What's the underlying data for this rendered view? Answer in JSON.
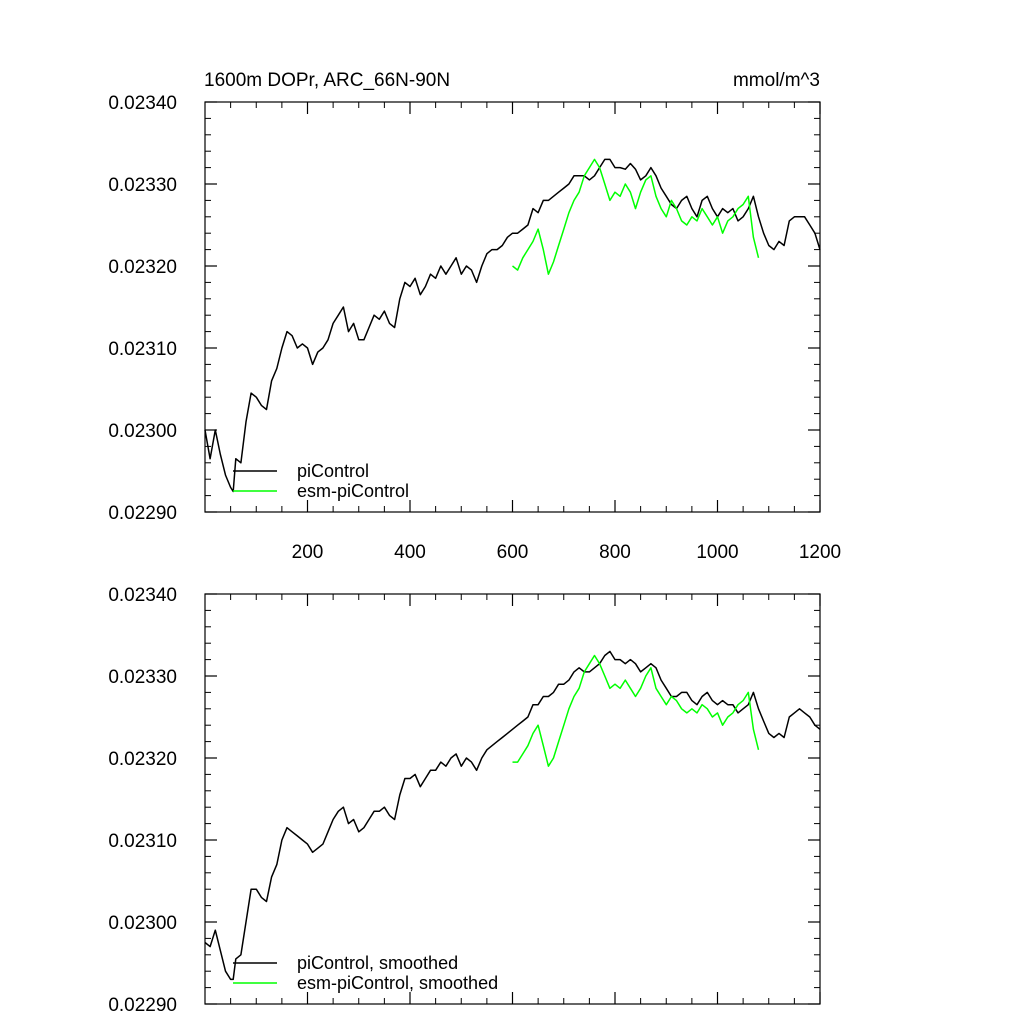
{
  "chart_data": [
    {
      "type": "line",
      "title": "1600m DOPr, ARC_66N-90N",
      "units": "mmol/m^3",
      "xlim": [
        0,
        1200
      ],
      "ylim": [
        0.0229,
        0.0234
      ],
      "xticks": [
        200,
        400,
        600,
        800,
        1000,
        1200
      ],
      "yticks": [
        0.0229,
        0.023,
        0.0231,
        0.0232,
        0.0233,
        0.0234
      ],
      "xtick_labels": [
        "200",
        "400",
        "600",
        "800",
        "1000",
        "1200"
      ],
      "ytick_labels": [
        "0.02290",
        "0.02300",
        "0.02310",
        "0.02320",
        "0.02330",
        "0.02340"
      ],
      "legend": "bottom-left",
      "series": [
        {
          "name": "piControl",
          "color": "#000000",
          "x": [
            0,
            10,
            20,
            30,
            40,
            50,
            55,
            60,
            70,
            80,
            90,
            100,
            110,
            120,
            130,
            140,
            150,
            160,
            170,
            180,
            190,
            200,
            210,
            220,
            230,
            240,
            250,
            260,
            270,
            280,
            290,
            300,
            310,
            320,
            330,
            340,
            350,
            360,
            370,
            380,
            390,
            400,
            410,
            420,
            430,
            440,
            450,
            460,
            470,
            480,
            490,
            500,
            510,
            520,
            530,
            540,
            550,
            560,
            570,
            580,
            590,
            600,
            610,
            620,
            630,
            640,
            650,
            660,
            670,
            680,
            690,
            700,
            710,
            720,
            730,
            740,
            750,
            760,
            770,
            780,
            790,
            800,
            810,
            820,
            830,
            840,
            850,
            860,
            870,
            880,
            890,
            900,
            910,
            920,
            930,
            940,
            950,
            960,
            970,
            980,
            990,
            1000,
            1010,
            1020,
            1030,
            1040,
            1050,
            1060,
            1070,
            1080,
            1090,
            1100,
            1110,
            1120,
            1130,
            1140,
            1150,
            1160,
            1170,
            1180,
            1190,
            1200
          ],
          "y": [
            0.023,
            0.022965,
            0.023,
            0.02297,
            0.022945,
            0.02293,
            0.022925,
            0.022965,
            0.02296,
            0.02301,
            0.023045,
            0.02304,
            0.02303,
            0.023025,
            0.02306,
            0.023075,
            0.0231,
            0.02312,
            0.023115,
            0.0231,
            0.023105,
            0.0231,
            0.02308,
            0.023095,
            0.0231,
            0.02311,
            0.02313,
            0.02314,
            0.02315,
            0.02312,
            0.02313,
            0.02311,
            0.02311,
            0.023125,
            0.02314,
            0.023135,
            0.023145,
            0.02313,
            0.023125,
            0.02316,
            0.02318,
            0.023175,
            0.023185,
            0.023165,
            0.023175,
            0.02319,
            0.023185,
            0.0232,
            0.02319,
            0.0232,
            0.02321,
            0.02319,
            0.0232,
            0.023195,
            0.02318,
            0.0232,
            0.023215,
            0.02322,
            0.02322,
            0.023225,
            0.023235,
            0.02324,
            0.02324,
            0.023245,
            0.02325,
            0.02327,
            0.023265,
            0.02328,
            0.02328,
            0.023285,
            0.02329,
            0.023295,
            0.0233,
            0.02331,
            0.02331,
            0.02331,
            0.023305,
            0.02331,
            0.02332,
            0.02333,
            0.02333,
            0.02332,
            0.02332,
            0.023318,
            0.023325,
            0.023318,
            0.023305,
            0.02331,
            0.02332,
            0.02331,
            0.023295,
            0.023285,
            0.023275,
            0.02327,
            0.02328,
            0.023285,
            0.02327,
            0.02326,
            0.02328,
            0.023285,
            0.02327,
            0.02326,
            0.02327,
            0.023265,
            0.02327,
            0.023255,
            0.02326,
            0.02327,
            0.023285,
            0.02326,
            0.02324,
            0.023225,
            0.02322,
            0.02323,
            0.023225,
            0.023255,
            0.02326,
            0.02326,
            0.02326,
            0.02325,
            0.02324,
            0.02322
          ]
        },
        {
          "name": "esm-piControl",
          "color": "#00ff00",
          "x": [
            600,
            610,
            620,
            630,
            640,
            650,
            660,
            670,
            680,
            690,
            700,
            710,
            720,
            730,
            740,
            750,
            760,
            770,
            780,
            790,
            800,
            810,
            820,
            830,
            840,
            850,
            860,
            870,
            880,
            890,
            900,
            910,
            920,
            930,
            940,
            950,
            960,
            970,
            980,
            990,
            1000,
            1010,
            1020,
            1030,
            1040,
            1050,
            1060,
            1070,
            1080
          ],
          "y": [
            0.0232,
            0.023195,
            0.02321,
            0.02322,
            0.02323,
            0.023245,
            0.02322,
            0.02319,
            0.023205,
            0.023225,
            0.023245,
            0.023265,
            0.02328,
            0.02329,
            0.02331,
            0.02332,
            0.02333,
            0.02332,
            0.0233,
            0.02328,
            0.02329,
            0.023285,
            0.0233,
            0.02329,
            0.02327,
            0.02329,
            0.023305,
            0.02331,
            0.023285,
            0.02327,
            0.02326,
            0.02328,
            0.02327,
            0.023255,
            0.02325,
            0.02326,
            0.023255,
            0.02327,
            0.02326,
            0.02325,
            0.02326,
            0.02324,
            0.023255,
            0.02326,
            0.02327,
            0.023275,
            0.023285,
            0.023235,
            0.02321
          ]
        }
      ]
    },
    {
      "type": "line",
      "title": "",
      "units": "",
      "xlim": [
        0,
        1200
      ],
      "ylim": [
        0.0229,
        0.0234
      ],
      "xticks": [
        200,
        400,
        600,
        800,
        1000,
        1200
      ],
      "yticks": [
        0.0229,
        0.023,
        0.0231,
        0.0232,
        0.0233,
        0.0234
      ],
      "xtick_labels": [],
      "ytick_labels": [
        "0.02290",
        "0.02300",
        "0.02310",
        "0.02320",
        "0.02330",
        "0.02340"
      ],
      "legend": "bottom-left",
      "series": [
        {
          "name": "piControl, smoothed",
          "color": "#000000",
          "x": [
            0,
            10,
            20,
            30,
            40,
            50,
            55,
            60,
            70,
            80,
            90,
            100,
            110,
            120,
            130,
            140,
            150,
            160,
            170,
            180,
            190,
            200,
            210,
            220,
            230,
            240,
            250,
            260,
            270,
            280,
            290,
            300,
            310,
            320,
            330,
            340,
            350,
            360,
            370,
            380,
            390,
            400,
            410,
            420,
            430,
            440,
            450,
            460,
            470,
            480,
            490,
            500,
            510,
            520,
            530,
            540,
            550,
            560,
            570,
            580,
            590,
            600,
            610,
            620,
            630,
            640,
            650,
            660,
            670,
            680,
            690,
            700,
            710,
            720,
            730,
            740,
            750,
            760,
            770,
            780,
            790,
            800,
            810,
            820,
            830,
            840,
            850,
            860,
            870,
            880,
            890,
            900,
            910,
            920,
            930,
            940,
            950,
            960,
            970,
            980,
            990,
            1000,
            1010,
            1020,
            1030,
            1040,
            1050,
            1060,
            1070,
            1080,
            1090,
            1100,
            1110,
            1120,
            1130,
            1140,
            1150,
            1160,
            1170,
            1180,
            1190,
            1200
          ],
          "y": [
            0.022975,
            0.02297,
            0.02299,
            0.022965,
            0.02294,
            0.02293,
            0.02293,
            0.022955,
            0.02296,
            0.023,
            0.02304,
            0.02304,
            0.02303,
            0.023025,
            0.023055,
            0.02307,
            0.0231,
            0.023115,
            0.02311,
            0.023105,
            0.0231,
            0.023095,
            0.023085,
            0.02309,
            0.023095,
            0.02311,
            0.023125,
            0.023135,
            0.02314,
            0.02312,
            0.023125,
            0.02311,
            0.023115,
            0.023125,
            0.023135,
            0.023135,
            0.02314,
            0.02313,
            0.023125,
            0.023155,
            0.023175,
            0.023175,
            0.02318,
            0.023165,
            0.023175,
            0.023185,
            0.023185,
            0.023195,
            0.02319,
            0.0232,
            0.023205,
            0.02319,
            0.0232,
            0.023195,
            0.023185,
            0.0232,
            0.02321,
            0.023215,
            0.02322,
            0.023225,
            0.02323,
            0.023235,
            0.02324,
            0.023245,
            0.02325,
            0.023265,
            0.023265,
            0.023275,
            0.023275,
            0.02328,
            0.02329,
            0.02329,
            0.023295,
            0.023305,
            0.02331,
            0.023305,
            0.023305,
            0.02331,
            0.023315,
            0.023325,
            0.02333,
            0.02332,
            0.02332,
            0.023315,
            0.02332,
            0.023315,
            0.023305,
            0.02331,
            0.023315,
            0.02331,
            0.023295,
            0.023285,
            0.023275,
            0.023275,
            0.02328,
            0.02328,
            0.02327,
            0.023265,
            0.023275,
            0.02328,
            0.02327,
            0.023265,
            0.02327,
            0.023265,
            0.023265,
            0.023255,
            0.02326,
            0.023265,
            0.02328,
            0.02326,
            0.023245,
            0.02323,
            0.023225,
            0.02323,
            0.023225,
            0.02325,
            0.023255,
            0.02326,
            0.023255,
            0.02325,
            0.02324,
            0.023235
          ]
        },
        {
          "name": "esm-piControl, smoothed",
          "color": "#00ff00",
          "x": [
            600,
            610,
            620,
            630,
            640,
            650,
            660,
            670,
            680,
            690,
            700,
            710,
            720,
            730,
            740,
            750,
            760,
            770,
            780,
            790,
            800,
            810,
            820,
            830,
            840,
            850,
            860,
            870,
            880,
            890,
            900,
            910,
            920,
            930,
            940,
            950,
            960,
            970,
            980,
            990,
            1000,
            1010,
            1020,
            1030,
            1040,
            1050,
            1060,
            1070,
            1080
          ],
          "y": [
            0.023195,
            0.023195,
            0.023205,
            0.023215,
            0.02323,
            0.02324,
            0.023215,
            0.02319,
            0.0232,
            0.02322,
            0.02324,
            0.02326,
            0.023275,
            0.023285,
            0.023305,
            0.023315,
            0.023325,
            0.023315,
            0.0233,
            0.023285,
            0.02329,
            0.023285,
            0.023295,
            0.023285,
            0.023275,
            0.023285,
            0.0233,
            0.02331,
            0.023285,
            0.023275,
            0.023265,
            0.023275,
            0.02327,
            0.02326,
            0.023255,
            0.02326,
            0.023255,
            0.023265,
            0.02326,
            0.02325,
            0.023255,
            0.02324,
            0.02325,
            0.023255,
            0.023265,
            0.02327,
            0.02328,
            0.023235,
            0.02321
          ]
        }
      ]
    }
  ]
}
